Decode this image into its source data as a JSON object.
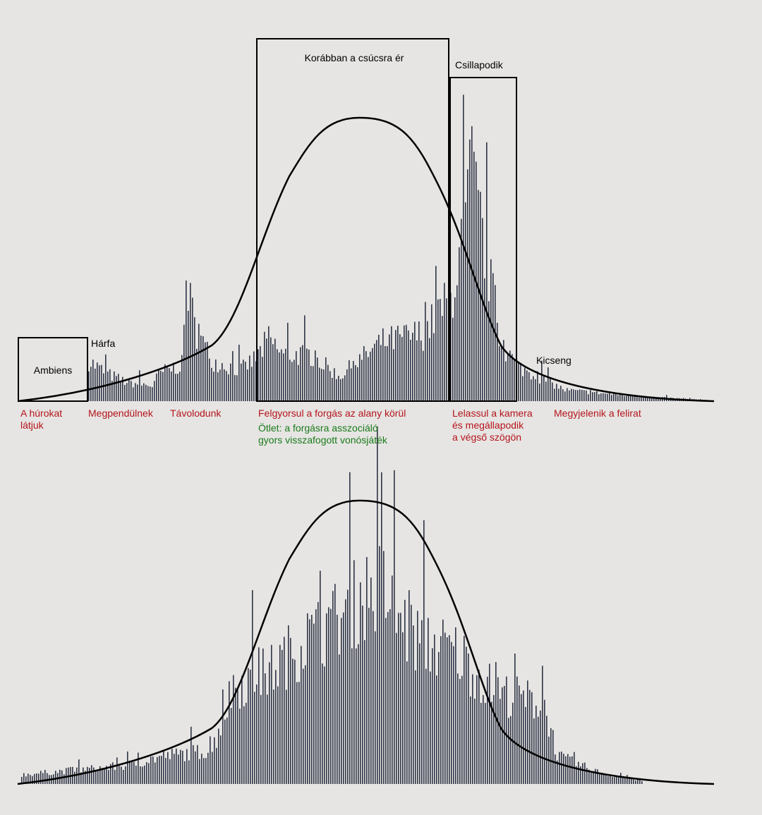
{
  "boxes": [
    {
      "label": "Ambiens"
    },
    {
      "label": "Korábban a csúcsra ér"
    },
    {
      "label": "Csillapodik"
    }
  ],
  "annotations": [
    "Hárfa",
    "Kicseng"
  ],
  "sections": [
    {
      "lines": [
        "A húrokat",
        "látjuk"
      ]
    },
    {
      "lines": [
        "Megpendülnek"
      ]
    },
    {
      "lines": [
        "Távolodunk"
      ]
    },
    {
      "lines": [
        "Felgyorsul a forgás az alany körül"
      ]
    },
    {
      "lines": [
        "Lelassul a kamera",
        "és megállapodik",
        "a végső szögön"
      ]
    },
    {
      "lines": [
        "Megyjelenik a felirat"
      ]
    }
  ],
  "note": {
    "lines": [
      "Ötlet: a forgásra asszociáló",
      "gyors visszafogott vonósjáték"
    ]
  }
}
